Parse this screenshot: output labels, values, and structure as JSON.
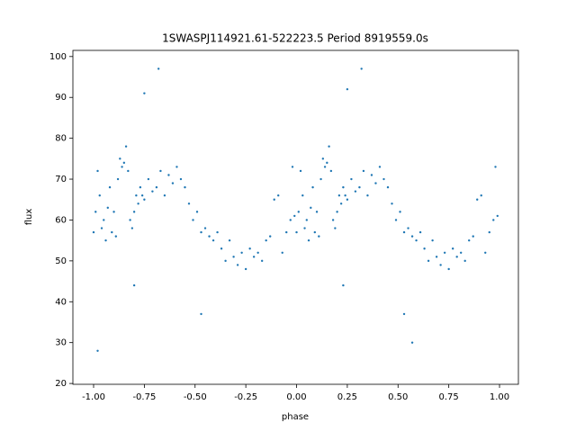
{
  "chart_data": {
    "type": "scatter",
    "title": "1SWASPJ114921.61-522223.5 Period 8919559.0s",
    "x_label": "phase",
    "y_label": "flux",
    "color": "#1f77b4",
    "xlim": [
      -1.102,
      1.093
    ],
    "ylim": [
      19.8,
      101.5
    ],
    "xticks": [
      {
        "value": -1,
        "label": "-1.00"
      },
      {
        "value": -0.75,
        "label": "-0.75"
      },
      {
        "value": -0.5,
        "label": "-0.50"
      },
      {
        "value": -0.25,
        "label": "-0.25"
      },
      {
        "value": 0,
        "label": "0.00"
      },
      {
        "value": 0.25,
        "label": "0.25"
      },
      {
        "value": 0.5,
        "label": "0.50"
      },
      {
        "value": 0.75,
        "label": "0.75"
      },
      {
        "value": 1,
        "label": "1.00"
      }
    ],
    "yticks": [
      20,
      30,
      40,
      50,
      60,
      70,
      80,
      90,
      100
    ],
    "x": [
      -1.0,
      -0.99,
      -0.98,
      -0.97,
      -0.96,
      -0.95,
      -0.94,
      -0.93,
      -0.92,
      -0.91,
      -0.9,
      -0.89,
      -0.88,
      -0.87,
      -0.86,
      -0.85,
      -0.84,
      -0.83,
      -0.82,
      -0.81,
      -0.8,
      -0.79,
      -0.78,
      -0.77,
      -0.76,
      -0.75,
      -0.73,
      -0.71,
      -0.69,
      -0.67,
      -0.65,
      -0.63,
      -0.61,
      -0.59,
      -0.57,
      -0.55,
      -0.53,
      -0.51,
      -0.49,
      -0.47,
      -0.45,
      -0.43,
      -0.41,
      -0.39,
      -0.37,
      -0.35,
      -0.33,
      -0.31,
      -0.29,
      -0.27,
      -0.25,
      -0.23,
      -0.21,
      -0.19,
      -0.17,
      -0.15,
      -0.13,
      -0.11,
      -0.09,
      -0.07,
      -0.05,
      -0.03,
      -0.02,
      -0.01,
      0.0,
      0.01,
      0.02,
      0.03,
      0.04,
      0.05,
      0.06,
      0.07,
      0.08,
      0.09,
      0.1,
      0.11,
      0.12,
      0.13,
      0.14,
      0.15,
      0.16,
      0.17,
      0.18,
      0.19,
      0.2,
      0.21,
      0.22,
      0.23,
      0.24,
      0.25,
      0.27,
      0.29,
      0.31,
      0.33,
      0.35,
      0.37,
      0.39,
      0.41,
      0.43,
      0.45,
      0.47,
      0.49,
      0.51,
      0.53,
      0.55,
      0.57,
      0.59,
      0.61,
      0.63,
      0.65,
      0.67,
      0.69,
      0.71,
      0.73,
      0.75,
      0.77,
      0.79,
      0.81,
      0.83,
      0.85,
      0.87,
      0.89,
      0.91,
      0.93,
      0.95,
      0.97,
      0.98,
      0.99,
      -0.8,
      0.23,
      -0.47,
      0.53,
      -0.75,
      0.25,
      -0.68,
      0.32,
      -0.98,
      0.57
    ],
    "values": [
      57,
      62,
      72,
      66,
      58,
      60,
      55,
      63,
      68,
      57,
      62,
      56,
      70,
      75,
      73,
      74,
      78,
      72,
      60,
      58,
      62,
      66,
      64,
      68,
      66,
      65,
      70,
      67,
      68,
      72,
      66,
      71,
      69,
      73,
      70,
      68,
      64,
      60,
      62,
      57,
      58,
      56,
      55,
      57,
      53,
      50,
      55,
      51,
      49,
      52,
      48,
      53,
      51,
      52,
      50,
      55,
      56,
      65,
      66,
      52,
      57,
      60,
      73,
      61,
      57,
      62,
      72,
      66,
      58,
      60,
      55,
      63,
      68,
      57,
      62,
      56,
      70,
      75,
      73,
      74,
      78,
      72,
      60,
      58,
      62,
      66,
      64,
      68,
      66,
      65,
      70,
      67,
      68,
      72,
      66,
      71,
      69,
      73,
      70,
      68,
      64,
      60,
      62,
      57,
      58,
      56,
      55,
      57,
      53,
      50,
      55,
      51,
      49,
      52,
      48,
      53,
      51,
      52,
      50,
      55,
      56,
      65,
      66,
      52,
      57,
      60,
      73,
      61,
      44,
      44,
      37,
      37,
      91,
      92,
      97,
      97,
      28,
      30
    ]
  }
}
